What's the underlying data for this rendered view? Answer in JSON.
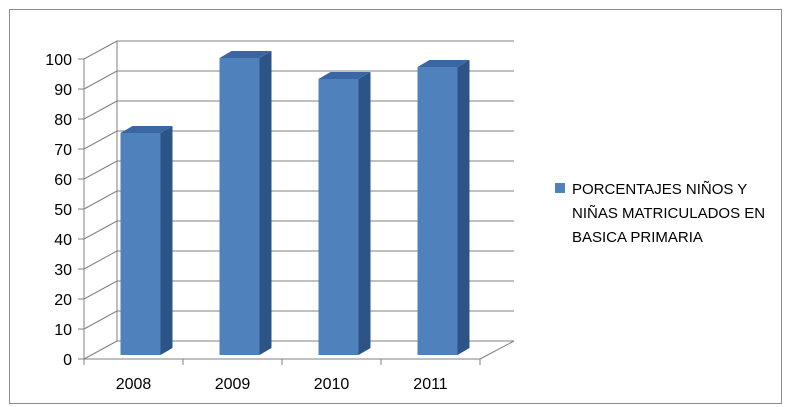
{
  "chart_data": {
    "type": "bar",
    "style": "3d-column",
    "categories": [
      "2008",
      "2009",
      "2010",
      "2011"
    ],
    "series": [
      {
        "name": "PORCENTAJES NIÑOS Y NIÑAS MATRICULADOS EN BASICA PRIMARIA",
        "values": [
          74,
          99,
          92,
          96
        ]
      }
    ],
    "yticks": [
      "0",
      "10",
      "20",
      "30",
      "40",
      "50",
      "60",
      "70",
      "80",
      "90",
      "100"
    ],
    "ylim": [
      0,
      100
    ],
    "title": "",
    "xlabel": "",
    "ylabel": "",
    "grid": true,
    "legend_position": "right",
    "colors": {
      "bar_front": "#4f81bd",
      "bar_side": "#2d5486",
      "bar_top": "#3a66a3",
      "grid": "#808080"
    }
  }
}
